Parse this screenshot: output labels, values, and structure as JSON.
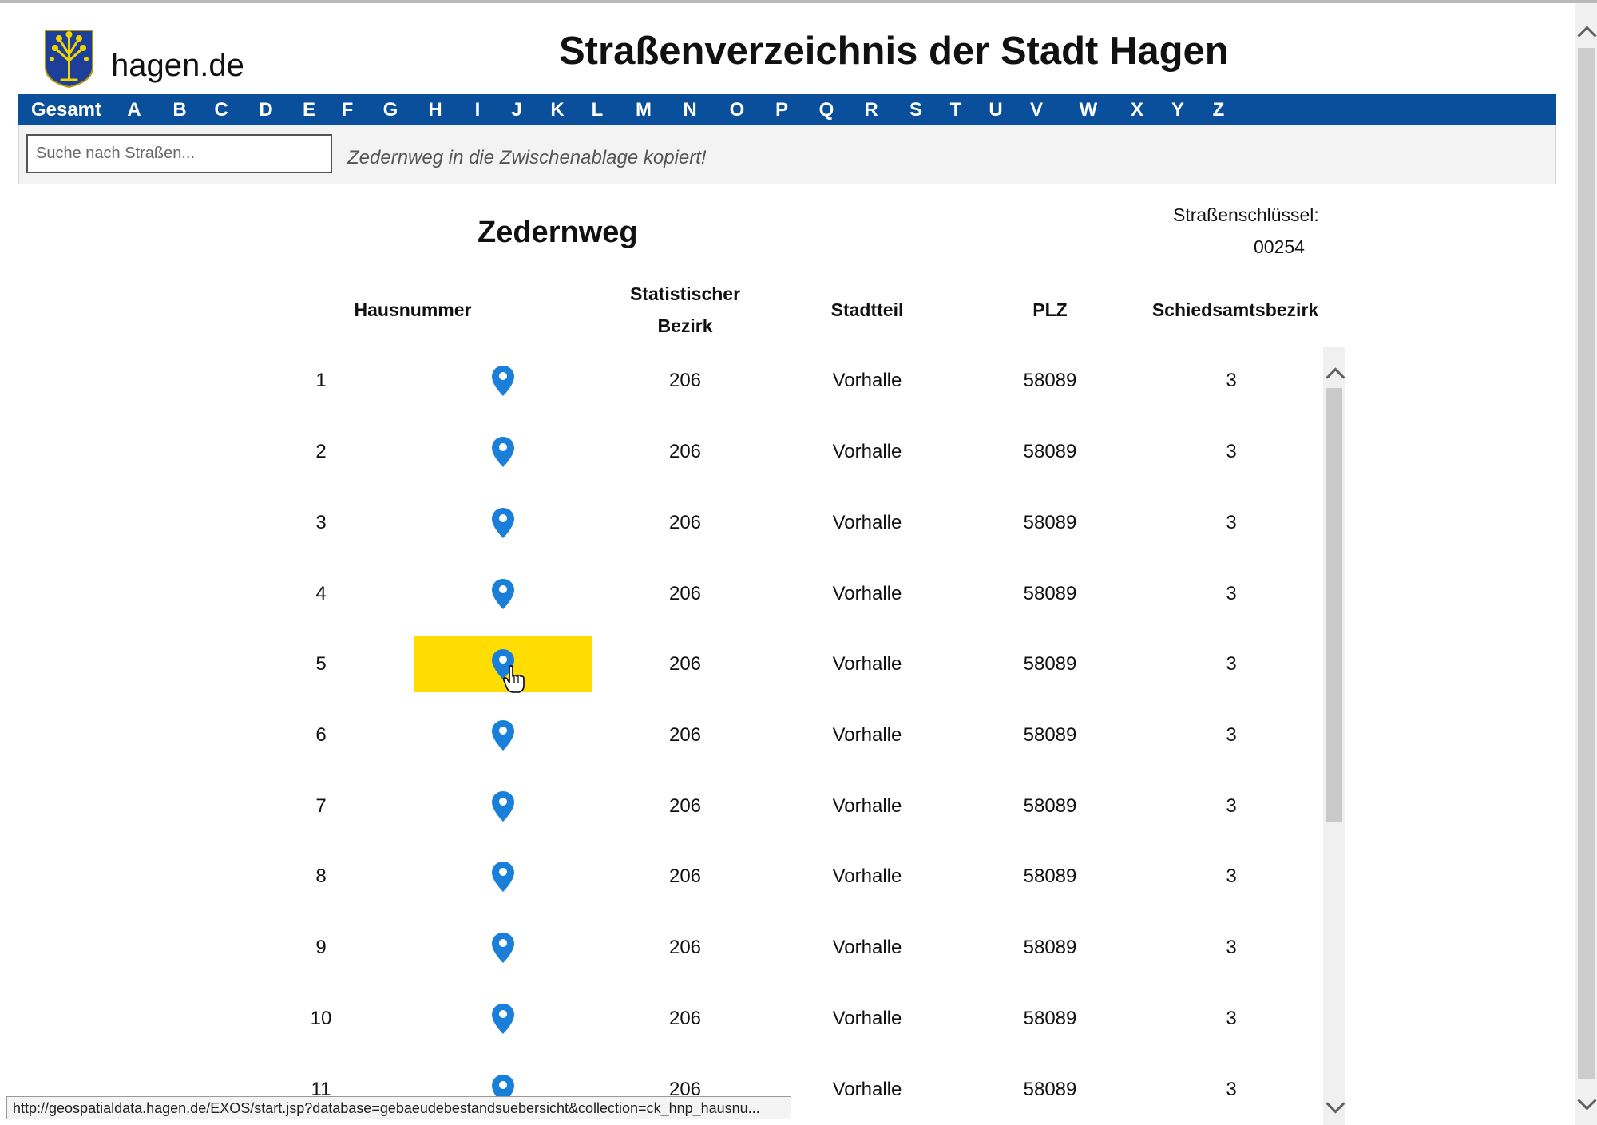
{
  "header": {
    "site_name": "hagen.de",
    "title": "Straßenverzeichnis der Stadt Hagen"
  },
  "nav": {
    "items": [
      "Gesamt",
      "A",
      "B",
      "C",
      "D",
      "E",
      "F",
      "G",
      "H",
      "I",
      "J",
      "K",
      "L",
      "M",
      "N",
      "O",
      "P",
      "Q",
      "R",
      "S",
      "T",
      "U",
      "V",
      "W",
      "X",
      "Y",
      "Z"
    ]
  },
  "search": {
    "placeholder": "Suche nach Straßen...",
    "value": "",
    "status_message": "Zedernweg in die Zwischenablage kopiert!"
  },
  "street": {
    "name": "Zedernweg",
    "key_label": "Straßenschlüssel:",
    "key_value": "00254"
  },
  "table": {
    "headers": {
      "hausnummer": "Hausnummer",
      "bezirk_line1": "Statistischer",
      "bezirk_line2": "Bezirk",
      "stadtteil": "Stadtteil",
      "plz": "PLZ",
      "schied": "Schiedsamtsbezirk"
    },
    "rows": [
      {
        "haus": "1",
        "bezirk": "206",
        "stadtteil": "Vorhalle",
        "plz": "58089",
        "schied": "3"
      },
      {
        "haus": "2",
        "bezirk": "206",
        "stadtteil": "Vorhalle",
        "plz": "58089",
        "schied": "3"
      },
      {
        "haus": "3",
        "bezirk": "206",
        "stadtteil": "Vorhalle",
        "plz": "58089",
        "schied": "3"
      },
      {
        "haus": "4",
        "bezirk": "206",
        "stadtteil": "Vorhalle",
        "plz": "58089",
        "schied": "3"
      },
      {
        "haus": "5",
        "bezirk": "206",
        "stadtteil": "Vorhalle",
        "plz": "58089",
        "schied": "3",
        "hover": true
      },
      {
        "haus": "6",
        "bezirk": "206",
        "stadtteil": "Vorhalle",
        "plz": "58089",
        "schied": "3"
      },
      {
        "haus": "7",
        "bezirk": "206",
        "stadtteil": "Vorhalle",
        "plz": "58089",
        "schied": "3"
      },
      {
        "haus": "8",
        "bezirk": "206",
        "stadtteil": "Vorhalle",
        "plz": "58089",
        "schied": "3"
      },
      {
        "haus": "9",
        "bezirk": "206",
        "stadtteil": "Vorhalle",
        "plz": "58089",
        "schied": "3"
      },
      {
        "haus": "10",
        "bezirk": "206",
        "stadtteil": "Vorhalle",
        "plz": "58089",
        "schied": "3"
      },
      {
        "haus": "11",
        "bezirk": "206",
        "stadtteil": "Vorhalle",
        "plz": "58089",
        "schied": "3"
      }
    ]
  },
  "status_url": "http://geospatialdata.hagen.de/EXOS/start.jsp?database=gebaeudebestandsuebersicht&collection=ck_hnp_hausnu...",
  "colors": {
    "nav_bg": "#0a4f9c",
    "pin": "#1a7fd9",
    "hover": "#ffdd00"
  },
  "icons": {
    "logo": "hagen-coat-of-arms-icon",
    "pin": "map-pin-icon",
    "cursor": "hand-pointer-cursor-icon"
  }
}
